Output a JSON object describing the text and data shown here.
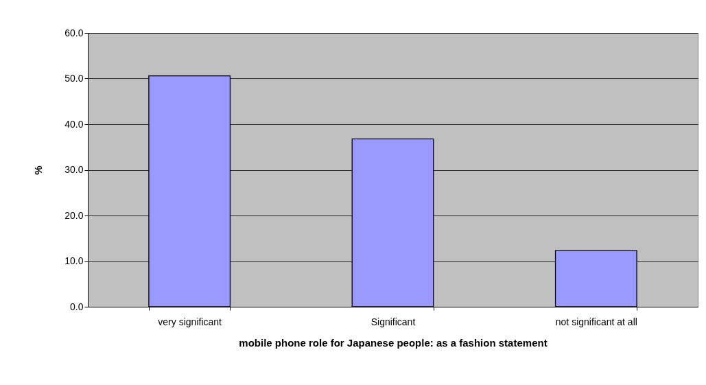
{
  "chart_data": {
    "type": "bar",
    "xlabel": "mobile phone role for Japanese people: as a fashion statement",
    "ylabel": "%",
    "categories": [
      "very significant",
      "Significant",
      "not significant at all"
    ],
    "values": [
      50.6,
      36.8,
      12.3
    ],
    "color": "#9999ff",
    "ylim": [
      0,
      60
    ],
    "yticks": [
      {
        "value": 0,
        "label": "0.0"
      },
      {
        "value": 10,
        "label": "10.0"
      },
      {
        "value": 20,
        "label": "20.0"
      },
      {
        "value": 30,
        "label": "30.0"
      },
      {
        "value": 40,
        "label": "40.0"
      },
      {
        "value": 50,
        "label": "50.0"
      },
      {
        "value": 60,
        "label": "60.0"
      }
    ],
    "grid": "y"
  }
}
